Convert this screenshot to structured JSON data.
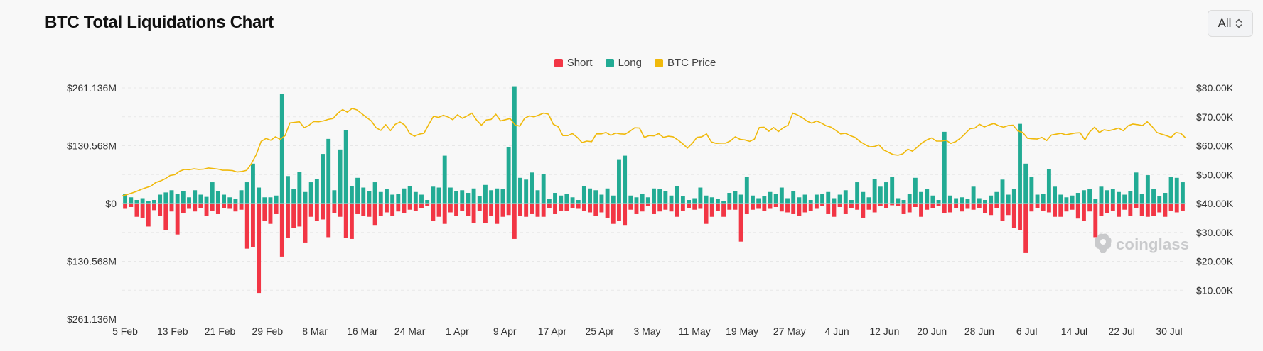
{
  "page": {
    "title": "BTC Total Liquidations Chart",
    "range_select": {
      "value": "All"
    },
    "watermark": "coinglass"
  },
  "legend": [
    {
      "label": "Short",
      "color": "#f23645"
    },
    {
      "label": "Long",
      "color": "#22ab94"
    },
    {
      "label": "BTC Price",
      "color": "#f0b90b"
    }
  ],
  "chart_data": {
    "type": "bar",
    "title": "BTC Total Liquidations Chart",
    "left_axis": {
      "ticks": [
        "$261.136M",
        "$130.568M",
        "$0",
        "$130.568M",
        "$261.136M"
      ],
      "values": [
        261.136,
        130.568,
        0,
        -130.568,
        -261.136
      ],
      "range": [
        -261.136,
        261.136
      ],
      "unit": "USD millions (shorts plotted downward)"
    },
    "right_axis": {
      "ticks": [
        "$80.00K",
        "$70.00K",
        "$60.00K",
        "$50.00K",
        "$40.00K",
        "$30.00K",
        "$20.00K",
        "$10.00K"
      ],
      "values": [
        80,
        70,
        60,
        50,
        40,
        30,
        20,
        10
      ],
      "range": [
        0,
        80
      ],
      "unit": "USD thousands"
    },
    "x_ticks": [
      "5 Feb",
      "13 Feb",
      "21 Feb",
      "29 Feb",
      "8 Mar",
      "16 Mar",
      "24 Mar",
      "1 Apr",
      "9 Apr",
      "17 Apr",
      "25 Apr",
      "3 May",
      "11 May",
      "19 May",
      "27 May",
      "4 Jun",
      "12 Jun",
      "20 Jun",
      "28 Jun",
      "6 Jul",
      "14 Jul",
      "22 Jul",
      "30 Jul"
    ],
    "series": [
      {
        "name": "Long",
        "color": "#22ab94",
        "values": [
          22,
          14,
          8,
          12,
          6,
          8,
          20,
          25,
          30,
          22,
          28,
          14,
          30,
          20,
          15,
          48,
          28,
          20,
          14,
          10,
          30,
          48,
          90,
          36,
          14,
          14,
          18,
          248,
          62,
          32,
          72,
          26,
          48,
          55,
          112,
          146,
          30,
          122,
          166,
          40,
          58,
          36,
          28,
          48,
          26,
          32,
          20,
          22,
          34,
          40,
          26,
          20,
          8,
          38,
          36,
          108,
          36,
          28,
          30,
          24,
          34,
          16,
          42,
          30,
          34,
          32,
          128,
          265,
          58,
          54,
          70,
          30,
          66,
          10,
          24,
          18,
          22,
          14,
          8,
          40,
          34,
          30,
          20,
          34,
          18,
          100,
          108,
          18,
          14,
          22,
          14,
          34,
          32,
          28,
          18,
          40,
          16,
          8,
          12,
          36,
          18,
          14,
          10,
          6,
          24,
          28,
          20,
          60,
          18,
          12,
          16,
          26,
          22,
          36,
          12,
          28,
          14,
          20,
          8,
          20,
          22,
          26,
          12,
          20,
          30,
          8,
          48,
          26,
          14,
          56,
          38,
          48,
          60,
          12,
          8,
          22,
          58,
          26,
          32,
          18,
          8,
          162,
          18,
          12,
          14,
          10,
          38,
          12,
          8,
          18,
          26,
          54,
          20,
          32,
          180,
          90,
          60,
          20,
          22,
          78,
          38,
          20,
          14,
          18,
          24,
          30,
          32,
          10,
          38,
          30,
          32,
          26,
          20,
          28,
          70,
          22,
          64,
          32,
          16,
          24,
          60,
          58,
          48
        ]
      },
      {
        "name": "Short",
        "color": "#f23645",
        "values": [
          -12,
          -8,
          -30,
          -32,
          -52,
          -15,
          -28,
          -60,
          -18,
          -70,
          -22,
          -12,
          -18,
          -10,
          -28,
          -16,
          -24,
          -10,
          -12,
          -18,
          -14,
          -102,
          -98,
          -202,
          -40,
          -46,
          -24,
          -120,
          -78,
          -56,
          -52,
          -88,
          -30,
          -40,
          -36,
          -76,
          -22,
          -30,
          -78,
          -80,
          -24,
          -28,
          -30,
          -50,
          -28,
          -20,
          -28,
          -18,
          -22,
          -14,
          -16,
          -10,
          -6,
          -40,
          -30,
          -46,
          -20,
          -28,
          -16,
          -28,
          -44,
          -16,
          -44,
          -28,
          -46,
          -30,
          -26,
          -80,
          -28,
          -30,
          -24,
          -30,
          -30,
          -10,
          -24,
          -16,
          -16,
          -10,
          -12,
          -16,
          -20,
          -28,
          -20,
          -32,
          -46,
          -40,
          -50,
          -14,
          -24,
          -18,
          -6,
          -24,
          -18,
          -14,
          -18,
          -30,
          -16,
          -10,
          -14,
          -12,
          -46,
          -30,
          -16,
          -30,
          -14,
          -14,
          -86,
          -24,
          -14,
          -12,
          -16,
          -12,
          -8,
          -18,
          -20,
          -24,
          -28,
          -20,
          -16,
          -12,
          -6,
          -24,
          -30,
          -8,
          -24,
          -10,
          -14,
          -32,
          -14,
          -20,
          -6,
          -10,
          -4,
          -6,
          -24,
          -20,
          -8,
          -30,
          -14,
          -10,
          -6,
          -22,
          -20,
          -10,
          -18,
          -12,
          -14,
          -10,
          -22,
          -26,
          -10,
          -40,
          -26,
          -56,
          -60,
          -112,
          -18,
          -10,
          -16,
          -20,
          -30,
          -30,
          -18,
          -14,
          -34,
          -40,
          -18,
          -76,
          -28,
          -22,
          -16,
          -30,
          -14,
          -28,
          -10,
          -28,
          -30,
          -28,
          -20,
          -30,
          -16,
          -20,
          -16
        ]
      },
      {
        "name": "BTC Price",
        "color": "#f0b90b",
        "axis": "right",
        "values": [
          42.6,
          43.1,
          43.6,
          44.2,
          44.9,
          45.5,
          46.0,
          47.3,
          47.8,
          48.6,
          49.7,
          50.0,
          51.2,
          51.8,
          51.7,
          52.0,
          51.8,
          51.9,
          52.3,
          52.1,
          51.9,
          51.5,
          51.5,
          51.4,
          50.9,
          51.1,
          51.5,
          53.9,
          57.0,
          61.5,
          62.5,
          61.9,
          63.1,
          62.2,
          63.5,
          67.9,
          68.1,
          68.3,
          66.2,
          67.1,
          68.4,
          68.3,
          68.6,
          69.1,
          69.4,
          71.2,
          72.5,
          71.6,
          72.9,
          72.4,
          71.1,
          69.8,
          68.6,
          66.2,
          65.3,
          67.3,
          65.2,
          67.4,
          68.2,
          67.1,
          64.3,
          63.3,
          64.0,
          64.3,
          67.4,
          70.2,
          69.8,
          70.5,
          70.0,
          69.0,
          70.7,
          69.5,
          70.3,
          71.3,
          68.8,
          67.1,
          68.9,
          69.1,
          70.9,
          68.6,
          69.0,
          69.4,
          67.2,
          66.8,
          69.5,
          70.3,
          70.0,
          70.6,
          71.3,
          70.9,
          67.4,
          66.6,
          63.5,
          63.5,
          64.2,
          62.9,
          61.1,
          61.6,
          61.4,
          64.1,
          64.1,
          64.6,
          63.6,
          64.4,
          64.1,
          64.0,
          65.0,
          66.2,
          66.1,
          62.9,
          63.5,
          63.4,
          64.2,
          62.9,
          63.3,
          63.1,
          62.0,
          60.7,
          59.2,
          60.8,
          62.9,
          63.1,
          64.1,
          61.3,
          60.8,
          60.9,
          60.9,
          61.7,
          63.1,
          62.2,
          62.0,
          61.5,
          62.3,
          66.3,
          66.4,
          65.0,
          66.3,
          64.9,
          66.2,
          67.1,
          71.3,
          70.6,
          69.7,
          68.5,
          67.8,
          68.6,
          67.8,
          66.9,
          66.4,
          65.3,
          64.1,
          64.3,
          63.5,
          62.9,
          61.5,
          60.5,
          59.6,
          59.7,
          60.3,
          58.5,
          57.7,
          56.9,
          56.7,
          57.2,
          58.8,
          58.1,
          59.5,
          61.0,
          62.0,
          62.7,
          61.6,
          61.6,
          61.9,
          60.8,
          61.4,
          62.6,
          64.2,
          65.9,
          66.1,
          67.4,
          66.5,
          67.2,
          67.7,
          66.9,
          66.4,
          67.0,
          67.1,
          65.1,
          64.6,
          62.6,
          62.4,
          62.3,
          62.9,
          61.8,
          63.7,
          64.0,
          64.3,
          63.8,
          64.1,
          64.4,
          64.5,
          62.0,
          64.8,
          66.4,
          64.6,
          65.5,
          65.2,
          65.6,
          66.1,
          65.2,
          66.9,
          67.5,
          67.3,
          67.0,
          68.3,
          66.7,
          64.6,
          64.0,
          63.5,
          62.9,
          64.6,
          64.3,
          62.7
        ]
      }
    ],
    "grid": true,
    "legend_position": "top-center"
  }
}
